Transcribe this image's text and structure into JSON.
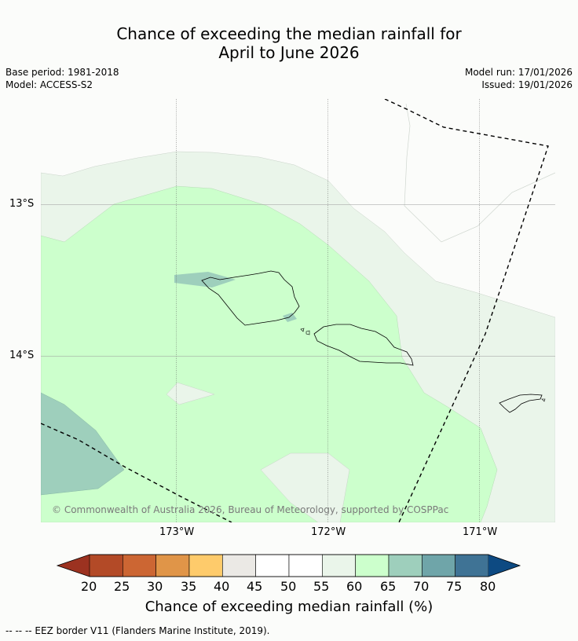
{
  "title": {
    "line1": "Chance of exceeding the median rainfall for",
    "line2": "April to June 2026"
  },
  "meta": {
    "base_period": "Base period: 1981-2018",
    "model": "Model: ACCESS-S2",
    "model_run": "Model run: 17/01/2026",
    "issued": "Issued: 19/01/2026"
  },
  "map": {
    "lat_labels": [
      "13°S",
      "14°S"
    ],
    "lon_labels": [
      "173°W",
      "172°W",
      "171°W"
    ],
    "copyright": "© Commonwealth of Australia 2026, Bureau of Meteorology, supported by COSPPac"
  },
  "colorbar": {
    "title": "Chance of exceeding median rainfall (%)",
    "ticks": [
      "20",
      "25",
      "30",
      "35",
      "40",
      "45",
      "50",
      "55",
      "60",
      "65",
      "70",
      "75",
      "80"
    ],
    "colors": {
      "under": "#9c3220",
      "bins": [
        "#b34a27",
        "#cc6633",
        "#e09548",
        "#fecb6b",
        "#ebe9e5",
        "#ffffff",
        "#ffffff",
        "#eaf5ea",
        "#ccffcc",
        "#9ecfbc",
        "#6fa5a9",
        "#3f7395"
      ],
      "over": "#0d4a82"
    }
  },
  "footer": {
    "legend_text": "--  --  -- EEZ border V11 (Flanders Marine Institute, 2019)."
  }
}
